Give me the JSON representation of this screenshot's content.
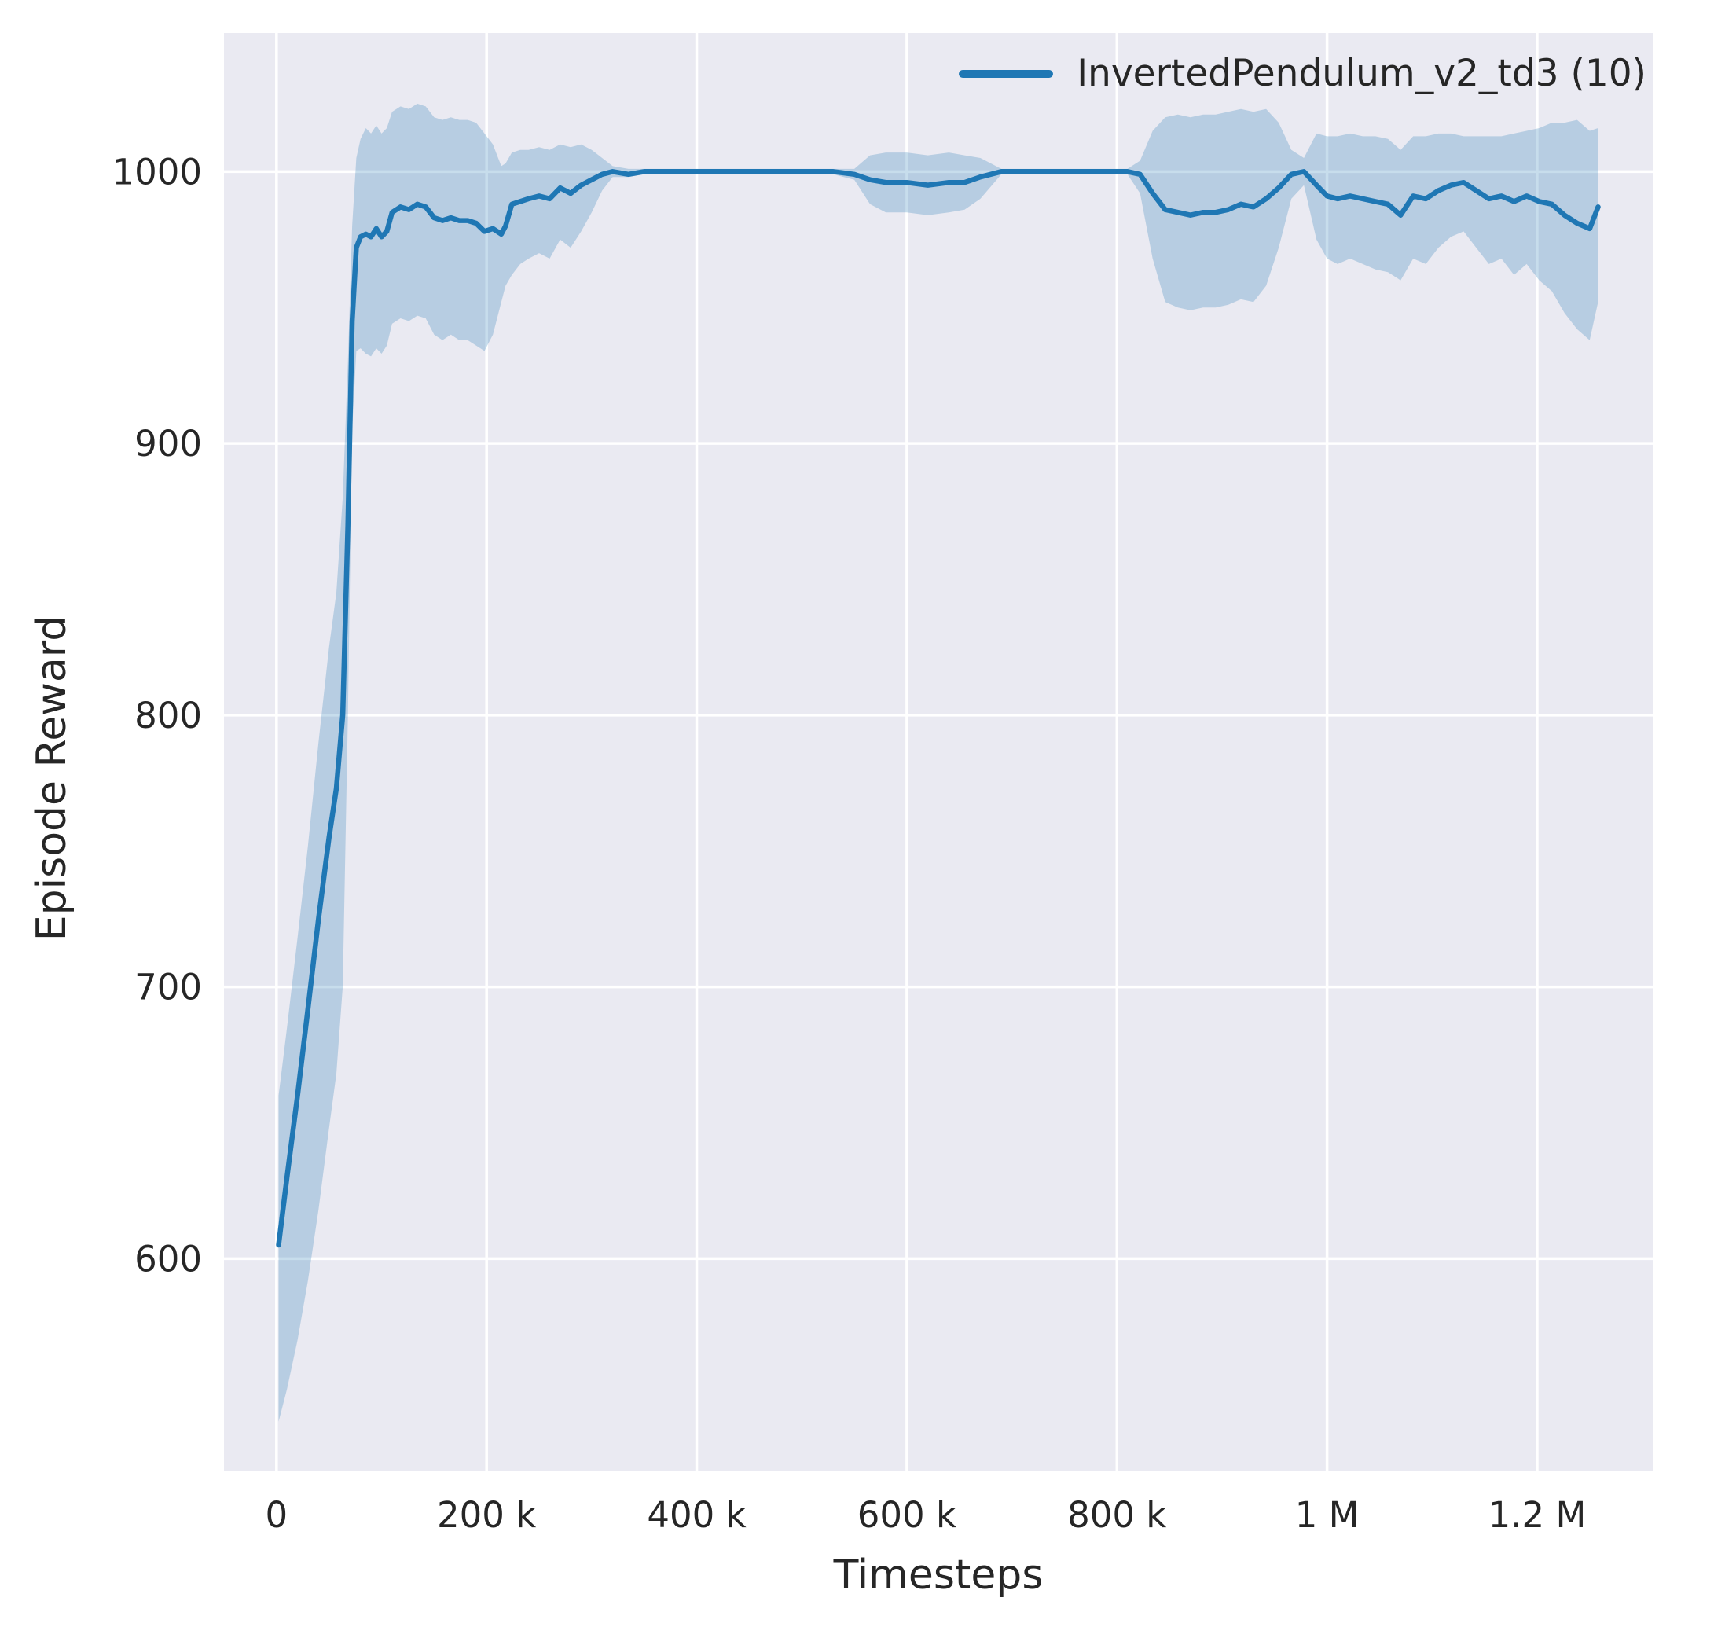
{
  "chart_data": {
    "type": "line",
    "title": "",
    "xlabel": "Timesteps",
    "ylabel": "Episode Reward",
    "grid": true,
    "legend_position": "upper right",
    "xlim": [
      -50000,
      1310000
    ],
    "ylim": [
      522,
      1051
    ],
    "x_ticks": [
      {
        "value": 0,
        "label": "0"
      },
      {
        "value": 200000,
        "label": "200 k"
      },
      {
        "value": 400000,
        "label": "400 k"
      },
      {
        "value": 600000,
        "label": "600 k"
      },
      {
        "value": 800000,
        "label": "800 k"
      },
      {
        "value": 1000000,
        "label": "1 M"
      },
      {
        "value": 1200000,
        "label": "1.2 M"
      }
    ],
    "y_ticks": [
      {
        "value": 600,
        "label": "600"
      },
      {
        "value": 700,
        "label": "700"
      },
      {
        "value": 800,
        "label": "800"
      },
      {
        "value": 900,
        "label": "900"
      },
      {
        "value": 1000,
        "label": "1000"
      }
    ],
    "colors": {
      "figure_bg": "#ffffff",
      "plot_bg": "#eaeaf2",
      "grid": "#ffffff",
      "text": "#262626",
      "line": "#1f77b4",
      "band": "#1f77b4"
    },
    "band_opacity": 0.25,
    "series": [
      {
        "name": "InvertedPendulum_v2_td3 (10)",
        "color": "#1f77b4",
        "x": [
          2000,
          10000,
          20000,
          30000,
          40000,
          50000,
          57000,
          63000,
          68000,
          72000,
          76000,
          80000,
          85000,
          90000,
          95000,
          100000,
          105000,
          110000,
          118000,
          126000,
          134000,
          142000,
          150000,
          158000,
          166000,
          174000,
          182000,
          190000,
          198000,
          206000,
          214000,
          218000,
          224000,
          232000,
          240000,
          250000,
          260000,
          270000,
          280000,
          290000,
          300000,
          310000,
          320000,
          335000,
          350000,
          370000,
          390000,
          410000,
          430000,
          450000,
          470000,
          490000,
          510000,
          530000,
          550000,
          565000,
          580000,
          600000,
          620000,
          640000,
          655000,
          670000,
          690000,
          710000,
          730000,
          750000,
          770000,
          790000,
          810000,
          822000,
          834000,
          846000,
          858000,
          870000,
          882000,
          894000,
          906000,
          918000,
          930000,
          942000,
          954000,
          966000,
          978000,
          990000,
          1000000,
          1010000,
          1022000,
          1034000,
          1046000,
          1058000,
          1070000,
          1082000,
          1094000,
          1106000,
          1118000,
          1130000,
          1142000,
          1154000,
          1166000,
          1178000,
          1190000,
          1202000,
          1214000,
          1226000,
          1238000,
          1250000,
          1258000
        ],
        "mean": [
          605,
          630,
          660,
          692,
          725,
          755,
          773,
          800,
          870,
          945,
          972,
          976,
          977,
          976,
          979,
          976,
          978,
          985,
          987,
          986,
          988,
          987,
          983,
          982,
          983,
          982,
          982,
          981,
          978,
          979,
          977,
          980,
          988,
          989,
          990,
          991,
          990,
          994,
          992,
          995,
          997,
          999,
          1000,
          999,
          1000,
          1000,
          1000,
          1000,
          1000,
          1000,
          1000,
          1000,
          1000,
          1000,
          999,
          997,
          996,
          996,
          995,
          996,
          996,
          998,
          1000,
          1000,
          1000,
          1000,
          1000,
          1000,
          1000,
          999,
          992,
          986,
          985,
          984,
          985,
          985,
          986,
          988,
          987,
          990,
          994,
          999,
          1000,
          995,
          991,
          990,
          991,
          990,
          989,
          988,
          984,
          991,
          990,
          993,
          995,
          996,
          993,
          990,
          991,
          989,
          991,
          989,
          988,
          984,
          981,
          979,
          987
        ],
        "lower": [
          540,
          552,
          570,
          592,
          618,
          648,
          668,
          700,
          800,
          905,
          934,
          935,
          933,
          932,
          935,
          933,
          936,
          944,
          946,
          945,
          947,
          946,
          940,
          938,
          940,
          938,
          938,
          936,
          934,
          940,
          952,
          958,
          962,
          966,
          968,
          970,
          968,
          975,
          972,
          978,
          985,
          993,
          998,
          998,
          999,
          999,
          999,
          999,
          999,
          999,
          999,
          999,
          999,
          999,
          997,
          988,
          985,
          985,
          984,
          985,
          986,
          990,
          999,
          999,
          999,
          999,
          999,
          999,
          999,
          992,
          968,
          952,
          950,
          949,
          950,
          950,
          951,
          953,
          952,
          958,
          972,
          990,
          995,
          975,
          968,
          966,
          968,
          966,
          964,
          963,
          960,
          968,
          966,
          972,
          976,
          978,
          972,
          966,
          968,
          962,
          966,
          960,
          956,
          948,
          942,
          938,
          952
        ],
        "upper": [
          660,
          685,
          718,
          752,
          790,
          825,
          845,
          880,
          930,
          980,
          1005,
          1012,
          1016,
          1014,
          1017,
          1014,
          1016,
          1022,
          1024,
          1023,
          1025,
          1024,
          1020,
          1019,
          1020,
          1019,
          1019,
          1018,
          1014,
          1010,
          1002,
          1003,
          1007,
          1008,
          1008,
          1009,
          1008,
          1010,
          1009,
          1010,
          1008,
          1005,
          1002,
          1001,
          1001,
          1001,
          1001,
          1001,
          1001,
          1001,
          1001,
          1001,
          1001,
          1001,
          1001,
          1006,
          1007,
          1007,
          1006,
          1007,
          1006,
          1005,
          1001,
          1001,
          1001,
          1001,
          1001,
          1001,
          1001,
          1004,
          1015,
          1020,
          1021,
          1020,
          1021,
          1021,
          1022,
          1023,
          1022,
          1023,
          1018,
          1008,
          1005,
          1014,
          1013,
          1013,
          1014,
          1013,
          1013,
          1012,
          1008,
          1013,
          1013,
          1014,
          1014,
          1013,
          1013,
          1013,
          1013,
          1014,
          1015,
          1016,
          1018,
          1018,
          1019,
          1015,
          1016
        ]
      }
    ]
  }
}
